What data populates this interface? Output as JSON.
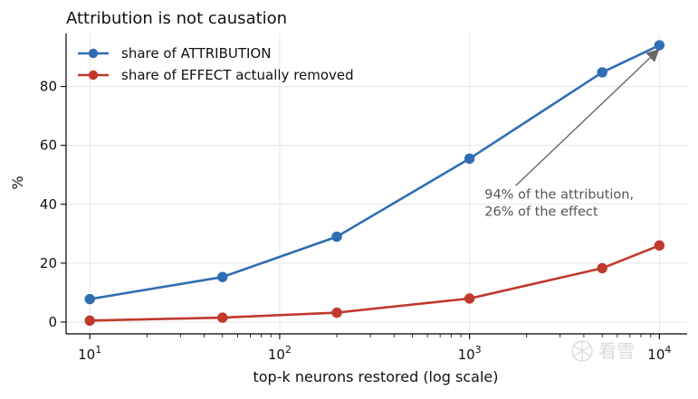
{
  "chart_data": {
    "type": "line",
    "title": "Attribution is not causation",
    "xlabel": "top-k neurons restored (log scale)",
    "ylabel": "%",
    "xscale": "log",
    "xlim": [
      7.5,
      14000
    ],
    "ylim": [
      -4,
      98
    ],
    "grid": true,
    "legend_position": "top-left",
    "x": [
      10,
      50,
      200,
      1000,
      5000,
      10000
    ],
    "x_tick_values": [
      10,
      100,
      1000,
      10000
    ],
    "x_ticks": [
      {
        "base": "10",
        "exp": "1"
      },
      {
        "base": "10",
        "exp": "2"
      },
      {
        "base": "10",
        "exp": "3"
      },
      {
        "base": "10",
        "exp": "4"
      }
    ],
    "y_ticks": [
      0,
      20,
      40,
      60,
      80
    ],
    "series": [
      {
        "name": "share of ATTRIBUTION",
        "color": "#2f6db4",
        "values": [
          7.8,
          15.3,
          29.0,
          55.5,
          84.8,
          94.0
        ]
      },
      {
        "name": "share of EFFECT actually removed",
        "color": "#c0392b",
        "values": [
          0.5,
          1.5,
          3.2,
          8.0,
          18.3,
          26.0
        ]
      }
    ],
    "annotation": {
      "lines": [
        "94% of the attribution,",
        "26% of the effect"
      ],
      "x": 1200,
      "y": 42,
      "arrow_to": {
        "x": 10000,
        "y": 94.0
      }
    }
  },
  "watermark": {
    "text": "看雪",
    "icon": "snowflake-icon"
  }
}
